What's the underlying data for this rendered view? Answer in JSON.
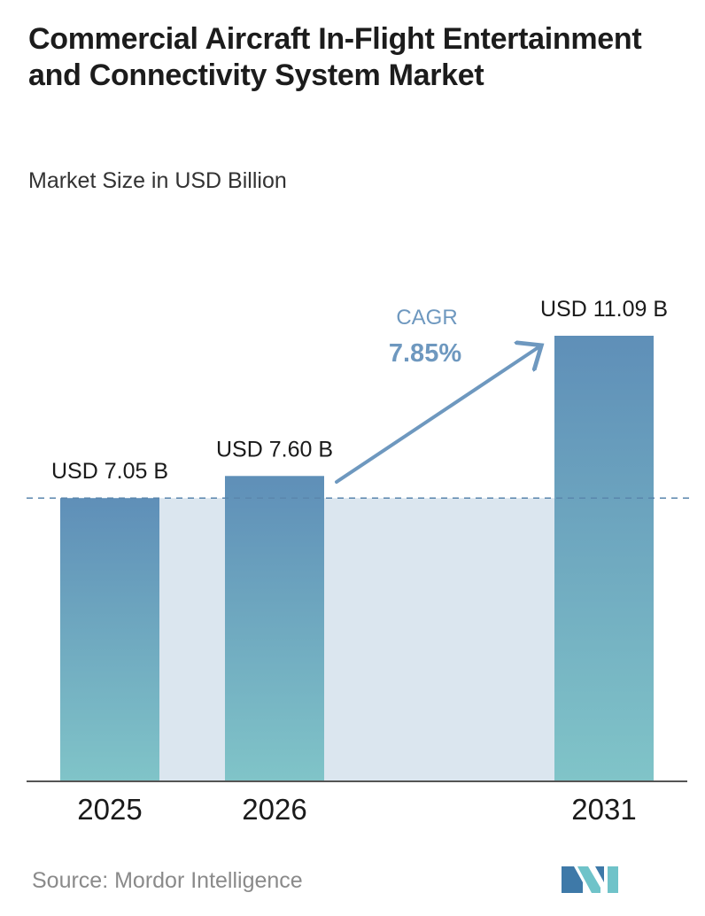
{
  "title": "Commercial Aircraft In-Flight Entertainment and Connectivity System Market",
  "subtitle": "Market Size in USD Billion",
  "source": "Source:  Mordor Intelligence",
  "chart_data": {
    "type": "bar",
    "categories": [
      "2025",
      "2026",
      "2031"
    ],
    "values": [
      7.05,
      7.6,
      11.09
    ],
    "value_labels": [
      "USD 7.05 B",
      "USD 7.60 B",
      "USD 11.09 B"
    ],
    "cagr_label": "CAGR",
    "cagr_value": "7.85%",
    "ylim": [
      0,
      11.09
    ],
    "grid": false,
    "colors": {
      "bar_top": "#5f8fb8",
      "bar_bottom": "#80c4c8",
      "shaded_area": "#dbe6ef",
      "arrow": "#6e98bf",
      "reference_line": "#5a86ad",
      "axis": "#555555"
    }
  },
  "logo": {
    "icon": "mordor-intelligence-logo-icon",
    "colors": [
      "#3e79a8",
      "#6fc3c9"
    ]
  }
}
